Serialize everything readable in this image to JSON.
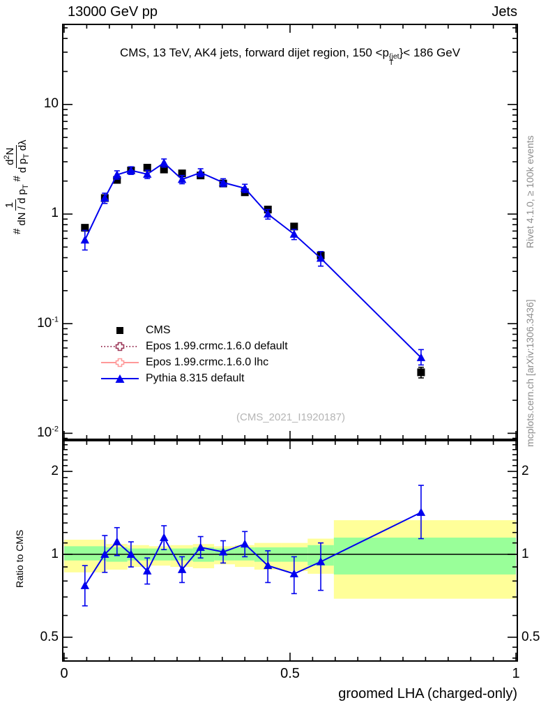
{
  "header": {
    "left_label": "13000 GeV pp",
    "right_label": "Jets"
  },
  "title": {
    "text_before_sup": "CMS, 13 TeV, AK4 jets, forward dijet region, 150 <p",
    "sup": "{jet",
    "sub": "T",
    "text_after": "}< 186 GeV"
  },
  "main_ylabel": {
    "hash1": "#",
    "f1_num": "1",
    "f1_den": "dN / d p",
    "f1_den_sub": "T",
    "hash2": "#",
    "f2_num_a": "d",
    "f2_num_sup": "2",
    "f2_num_b": "N",
    "f2_den_a": "d p",
    "f2_den_sub": "T",
    "f2_den_b": " dλ"
  },
  "side_notes": {
    "top_right": "Rivet 4.1.0, ≥ 100k events",
    "bottom_right": "mcplots.cern.ch [arXiv:1306.3436]"
  },
  "watermark": "(CMS_2021_I1920187)",
  "axes": {
    "x": {
      "label": "groomed LHA (charged-only)",
      "range": [
        0,
        1
      ],
      "major_ticks": [
        0,
        0.5,
        1
      ],
      "minor_step": 0.05
    },
    "main_y": {
      "scale": "log",
      "tick_values": [
        10,
        1,
        0.1,
        0.01
      ],
      "tick_labels": [
        "10",
        "1",
        "10^{-1}",
        "10^{-2}"
      ]
    },
    "ratio_y": {
      "scale": "log",
      "label": "Ratio to CMS",
      "tick_values": [
        2,
        1,
        0.5
      ],
      "tick_labels": [
        "2",
        "1",
        "0.5"
      ],
      "minor_ticks": [
        0.42,
        0.46,
        0.6,
        0.7,
        0.8,
        0.9,
        1.1,
        1.2,
        1.3,
        1.4,
        1.5,
        1.6,
        1.7,
        1.8,
        1.9,
        2.1,
        2.2,
        2.3,
        2.4,
        2.5
      ]
    }
  },
  "legend": [
    {
      "label": "CMS",
      "marker": "square",
      "color": "#000000",
      "line": "none"
    },
    {
      "label": "Epos 1.99.crmc.1.6.0 default",
      "marker": "open-cross",
      "color": "#993355",
      "line": "dotted"
    },
    {
      "label": "Epos 1.99.crmc.1.6.0 lhc",
      "marker": "open-cross",
      "color": "#ff9999",
      "line": "solid"
    },
    {
      "label": "Pythia 8.315 default",
      "marker": "triangle-up",
      "color": "#0000ee",
      "line": "solid"
    }
  ],
  "chart_data": [
    {
      "id": "main",
      "type": "line",
      "yscale": "log",
      "ylim": [
        0.0088,
        53
      ],
      "xlim": [
        0,
        1
      ],
      "series": [
        {
          "name": "CMS",
          "marker": "square",
          "color": "#000000",
          "line": "none",
          "x": [
            0.046,
            0.09,
            0.117,
            0.148,
            0.184,
            0.221,
            0.261,
            0.302,
            0.352,
            0.4,
            0.451,
            0.509,
            0.568,
            0.79
          ],
          "y": [
            0.75,
            1.4,
            2.05,
            2.5,
            2.65,
            2.55,
            2.35,
            2.25,
            1.9,
            1.58,
            1.1,
            0.77,
            0.42,
            0.036
          ],
          "yerr_up": [
            0.04,
            0.06,
            0.07,
            0.08,
            0.08,
            0.08,
            0.07,
            0.07,
            0.06,
            0.05,
            0.04,
            0.03,
            0.02,
            0.004
          ],
          "yerr_down": [
            0.04,
            0.06,
            0.07,
            0.08,
            0.08,
            0.08,
            0.07,
            0.07,
            0.06,
            0.05,
            0.04,
            0.03,
            0.02,
            0.004
          ]
        },
        {
          "name": "Pythia 8.315 default",
          "marker": "triangle-up",
          "color": "#0000ee",
          "line": "solid",
          "x": [
            0.046,
            0.09,
            0.117,
            0.148,
            0.184,
            0.221,
            0.261,
            0.302,
            0.352,
            0.4,
            0.451,
            0.509,
            0.568,
            0.79
          ],
          "y": [
            0.58,
            1.4,
            2.28,
            2.5,
            2.31,
            2.93,
            2.07,
            2.39,
            1.94,
            1.72,
            1.0,
            0.655,
            0.395,
            0.049
          ],
          "yerr_up": [
            0.13,
            0.15,
            0.2,
            0.2,
            0.2,
            0.25,
            0.18,
            0.2,
            0.16,
            0.15,
            0.1,
            0.07,
            0.06,
            0.009
          ],
          "yerr_down": [
            0.11,
            0.15,
            0.2,
            0.2,
            0.2,
            0.25,
            0.18,
            0.2,
            0.16,
            0.15,
            0.1,
            0.07,
            0.06,
            0.007
          ]
        }
      ]
    },
    {
      "id": "ratio",
      "type": "ratio-line",
      "yscale": "log",
      "ylim": [
        0.41,
        2.59
      ],
      "reference_line": 1,
      "band_colors": {
        "inner": "#99ff99",
        "outer": "#ffff99"
      },
      "bands": [
        {
          "x_lo": 0.0,
          "x_hi": 0.093,
          "green_lo": 0.95,
          "green_hi": 1.07,
          "yellow_lo": 0.86,
          "yellow_hi": 1.13
        },
        {
          "x_lo": 0.093,
          "x_hi": 0.14,
          "green_lo": 0.94,
          "green_hi": 1.06,
          "yellow_lo": 0.88,
          "yellow_hi": 1.09
        },
        {
          "x_lo": 0.14,
          "x_hi": 0.188,
          "green_lo": 0.95,
          "green_hi": 1.05,
          "yellow_lo": 0.9,
          "yellow_hi": 1.08
        },
        {
          "x_lo": 0.188,
          "x_hi": 0.235,
          "green_lo": 0.95,
          "green_hi": 1.05,
          "yellow_lo": 0.91,
          "yellow_hi": 1.07
        },
        {
          "x_lo": 0.235,
          "x_hi": 0.285,
          "green_lo": 0.95,
          "green_hi": 1.05,
          "yellow_lo": 0.9,
          "yellow_hi": 1.08
        },
        {
          "x_lo": 0.285,
          "x_hi": 0.332,
          "green_lo": 0.94,
          "green_hi": 1.06,
          "yellow_lo": 0.89,
          "yellow_hi": 1.09
        },
        {
          "x_lo": 0.332,
          "x_hi": 0.378,
          "green_lo": 0.95,
          "green_hi": 1.05,
          "yellow_lo": 0.92,
          "yellow_hi": 1.07
        },
        {
          "x_lo": 0.378,
          "x_hi": 0.421,
          "green_lo": 0.95,
          "green_hi": 1.06,
          "yellow_lo": 0.9,
          "yellow_hi": 1.08
        },
        {
          "x_lo": 0.421,
          "x_hi": 0.48,
          "green_lo": 0.94,
          "green_hi": 1.06,
          "yellow_lo": 0.88,
          "yellow_hi": 1.1
        },
        {
          "x_lo": 0.48,
          "x_hi": 0.539,
          "green_lo": 0.94,
          "green_hi": 1.06,
          "yellow_lo": 0.87,
          "yellow_hi": 1.1
        },
        {
          "x_lo": 0.539,
          "x_hi": 0.597,
          "green_lo": 0.91,
          "green_hi": 1.08,
          "yellow_lo": 0.85,
          "yellow_hi": 1.14
        },
        {
          "x_lo": 0.597,
          "x_hi": 1.0,
          "green_lo": 0.845,
          "green_hi": 1.15,
          "yellow_lo": 0.69,
          "yellow_hi": 1.33
        }
      ],
      "series": [
        {
          "name": "Pythia 8.315 default / CMS",
          "marker": "triangle-up",
          "color": "#0000ee",
          "line": "solid",
          "x": [
            0.046,
            0.09,
            0.117,
            0.148,
            0.184,
            0.221,
            0.261,
            0.302,
            0.352,
            0.4,
            0.451,
            0.509,
            0.568,
            0.79
          ],
          "y": [
            0.77,
            1.0,
            1.11,
            1.0,
            0.87,
            1.15,
            0.88,
            1.06,
            1.02,
            1.09,
            0.91,
            0.85,
            0.94,
            1.42
          ],
          "yerr_up": [
            0.14,
            0.17,
            0.14,
            0.11,
            0.1,
            0.12,
            0.1,
            0.1,
            0.1,
            0.12,
            0.12,
            0.13,
            0.16,
            0.36
          ],
          "yerr_down": [
            0.12,
            0.14,
            0.12,
            0.1,
            0.09,
            0.11,
            0.09,
            0.09,
            0.09,
            0.11,
            0.12,
            0.13,
            0.2,
            0.28
          ]
        }
      ]
    }
  ]
}
